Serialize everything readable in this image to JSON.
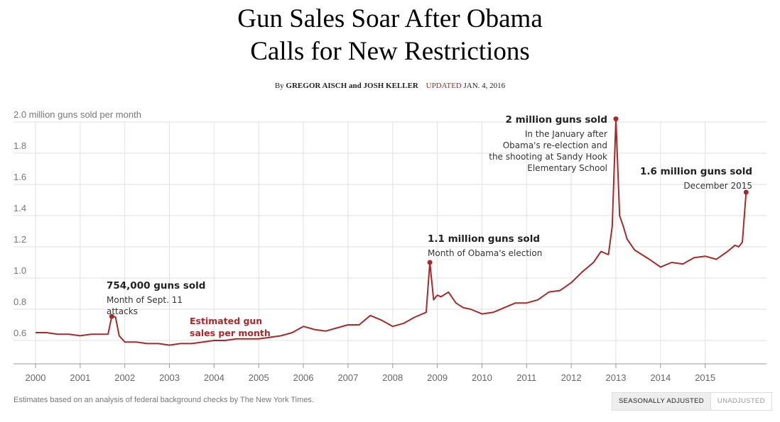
{
  "headline": {
    "line1": "Gun Sales Soar After Obama",
    "line2": "Calls for New Restrictions"
  },
  "byline": {
    "by": "By",
    "authors": "GREGOR AISCH and JOSH KELLER",
    "updated_label": "UPDATED",
    "date": "JAN. 4, 2016"
  },
  "chart_data": {
    "type": "line",
    "ylabel": "2.0 million guns sold per month",
    "yticks": [
      0.6,
      0.8,
      1.0,
      1.2,
      1.4,
      1.6,
      1.8,
      2.0
    ],
    "ytick_labels": [
      "0.6",
      "0.8",
      "1.0",
      "1.2",
      "1.4",
      "1.6",
      "1.8",
      ""
    ],
    "ylim": [
      0.45,
      2.05
    ],
    "xlim": [
      2000.0,
      2016.0
    ],
    "xticks": [
      2000,
      2001,
      2002,
      2003,
      2004,
      2005,
      2006,
      2007,
      2008,
      2009,
      2010,
      2011,
      2012,
      2013,
      2014,
      2015
    ],
    "xtick_labels": [
      "2000",
      "2001",
      "2002",
      "2003",
      "2004",
      "2005",
      "2006",
      "2007",
      "2008",
      "2009",
      "2010",
      "2011",
      "2012",
      "2013",
      "2014",
      "2015"
    ],
    "grid": true,
    "series": [
      {
        "name": "Estimated gun sales per month",
        "color": "#a32b2b",
        "x": [
          2000.0,
          2000.25,
          2000.5,
          2000.75,
          2001.0,
          2001.25,
          2001.5,
          2001.625,
          2001.708,
          2001.792,
          2001.875,
          2002.0,
          2002.25,
          2002.5,
          2002.75,
          2003.0,
          2003.25,
          2003.5,
          2003.75,
          2004.0,
          2004.25,
          2004.5,
          2004.75,
          2005.0,
          2005.25,
          2005.5,
          2005.75,
          2006.0,
          2006.25,
          2006.5,
          2006.75,
          2007.0,
          2007.25,
          2007.5,
          2007.75,
          2008.0,
          2008.25,
          2008.5,
          2008.75,
          2008.833,
          2008.917,
          2009.0,
          2009.083,
          2009.25,
          2009.417,
          2009.583,
          2009.75,
          2010.0,
          2010.25,
          2010.5,
          2010.75,
          2011.0,
          2011.25,
          2011.5,
          2011.75,
          2012.0,
          2012.25,
          2012.5,
          2012.667,
          2012.833,
          2012.917,
          2013.0,
          2013.083,
          2013.167,
          2013.25,
          2013.417,
          2013.583,
          2013.75,
          2014.0,
          2014.25,
          2014.5,
          2014.75,
          2015.0,
          2015.25,
          2015.5,
          2015.667,
          2015.75,
          2015.833,
          2015.917
        ],
        "values": [
          0.65,
          0.65,
          0.64,
          0.64,
          0.63,
          0.64,
          0.64,
          0.64,
          0.754,
          0.75,
          0.63,
          0.59,
          0.59,
          0.58,
          0.58,
          0.57,
          0.58,
          0.58,
          0.59,
          0.6,
          0.6,
          0.61,
          0.61,
          0.61,
          0.62,
          0.63,
          0.65,
          0.69,
          0.67,
          0.66,
          0.68,
          0.7,
          0.7,
          0.76,
          0.73,
          0.69,
          0.71,
          0.75,
          0.78,
          1.1,
          0.86,
          0.89,
          0.88,
          0.91,
          0.84,
          0.81,
          0.8,
          0.77,
          0.78,
          0.81,
          0.84,
          0.84,
          0.86,
          0.91,
          0.92,
          0.97,
          1.04,
          1.1,
          1.17,
          1.15,
          1.33,
          2.02,
          1.4,
          1.33,
          1.25,
          1.18,
          1.15,
          1.12,
          1.07,
          1.1,
          1.09,
          1.13,
          1.14,
          1.12,
          1.17,
          1.21,
          1.2,
          1.23,
          1.55
        ]
      }
    ],
    "annotations": [
      {
        "title": "754,000 guns sold",
        "text": "Month of Sept. 11 attacks",
        "x": 2001.708,
        "y": 0.754
      },
      {
        "title": "1.1 million guns sold",
        "text": "Month of Obama's election",
        "x": 2008.833,
        "y": 1.1
      },
      {
        "title": "2 million guns sold",
        "text": "In the January after Obama's re-election and the shooting at Sandy Hook Elementary School",
        "x": 2013.0,
        "y": 2.02
      },
      {
        "title": "1.6 million guns sold",
        "text": "December 2015",
        "x": 2015.917,
        "y": 1.55
      }
    ],
    "series_label": "Estimated gun sales per month"
  },
  "footer": {
    "source": "Estimates based on an analysis of federal background checks by The New York Times."
  },
  "toggle": {
    "active": "SEASONALLY ADJUSTED",
    "inactive": "UNADJUSTED"
  }
}
